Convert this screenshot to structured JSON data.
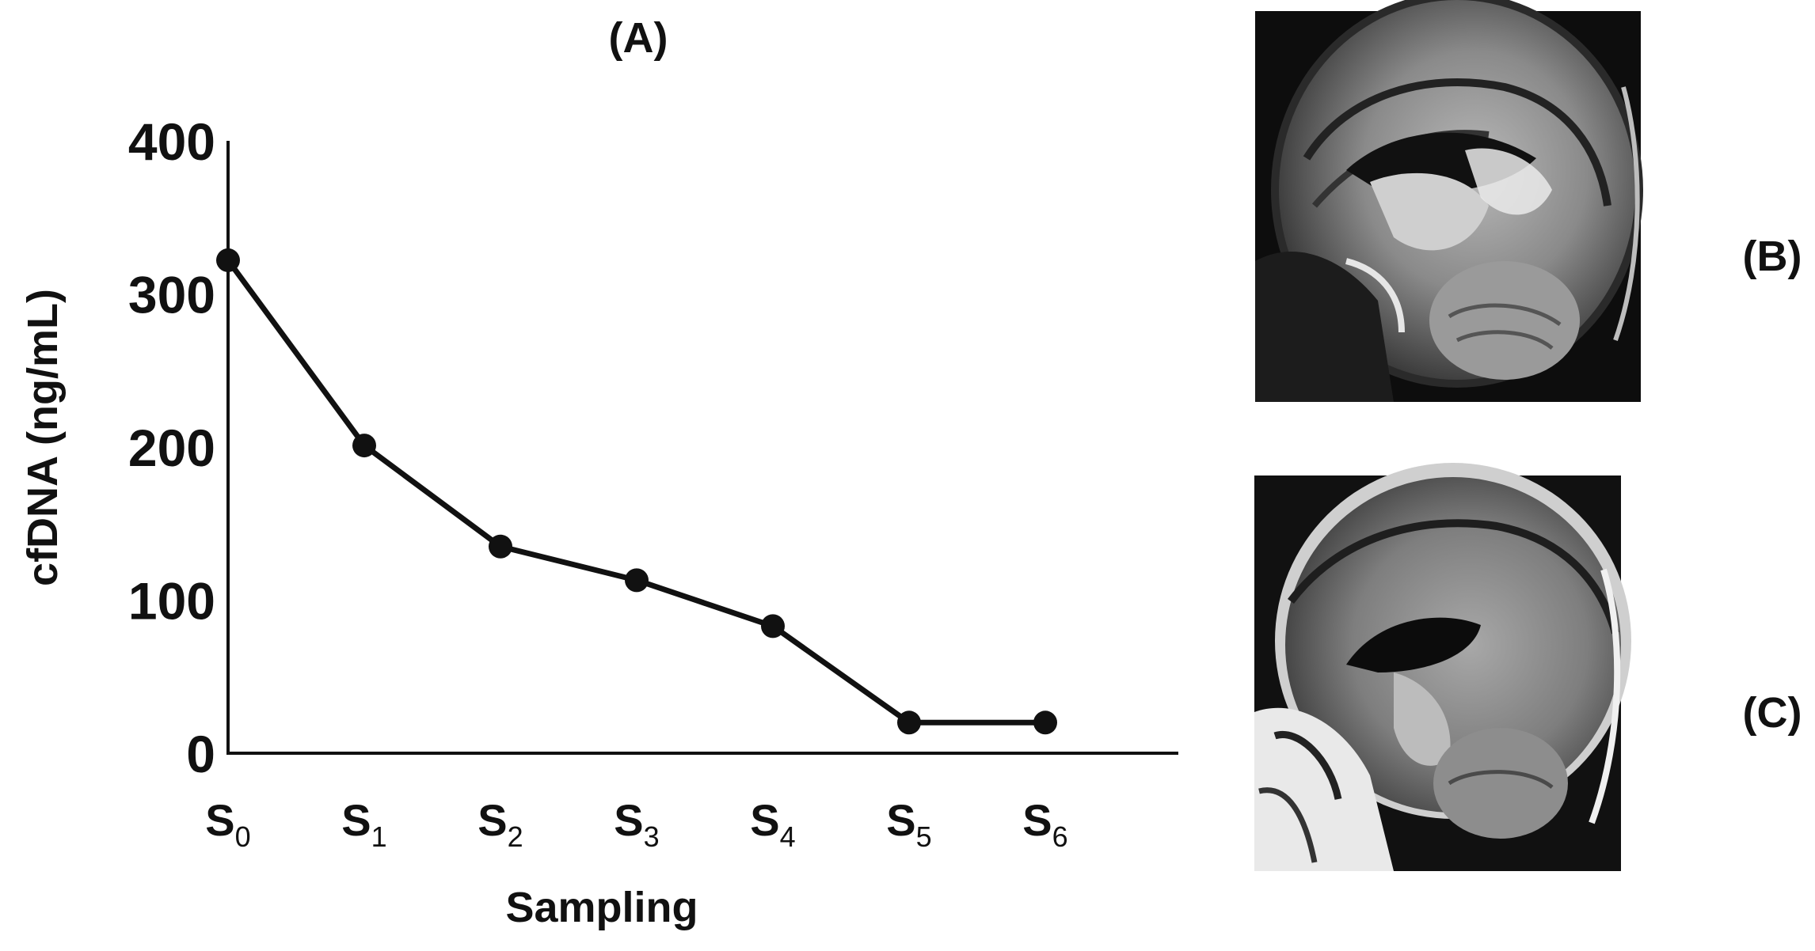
{
  "chart_data": {
    "type": "line",
    "title": "(A)",
    "xlabel": "Sampling",
    "ylabel": "cfDNA (ng/mL)",
    "categories": [
      {
        "base": "S",
        "sub": "0"
      },
      {
        "base": "S",
        "sub": "1"
      },
      {
        "base": "S",
        "sub": "2"
      },
      {
        "base": "S",
        "sub": "3"
      },
      {
        "base": "S",
        "sub": "4"
      },
      {
        "base": "S",
        "sub": "5"
      },
      {
        "base": "S",
        "sub": "6"
      }
    ],
    "values": [
      322,
      201,
      135,
      113,
      83,
      20,
      20
    ],
    "ylim": [
      0,
      400
    ],
    "yticks": [
      0,
      100,
      200,
      300,
      400
    ],
    "grid": false,
    "line_color": "#111111",
    "marker": "circle"
  },
  "panels": {
    "b_label": "(B)",
    "c_label": "(C)",
    "b_image": "mri-sagittal-brain-preop",
    "c_image": "mri-sagittal-brain-postop"
  }
}
